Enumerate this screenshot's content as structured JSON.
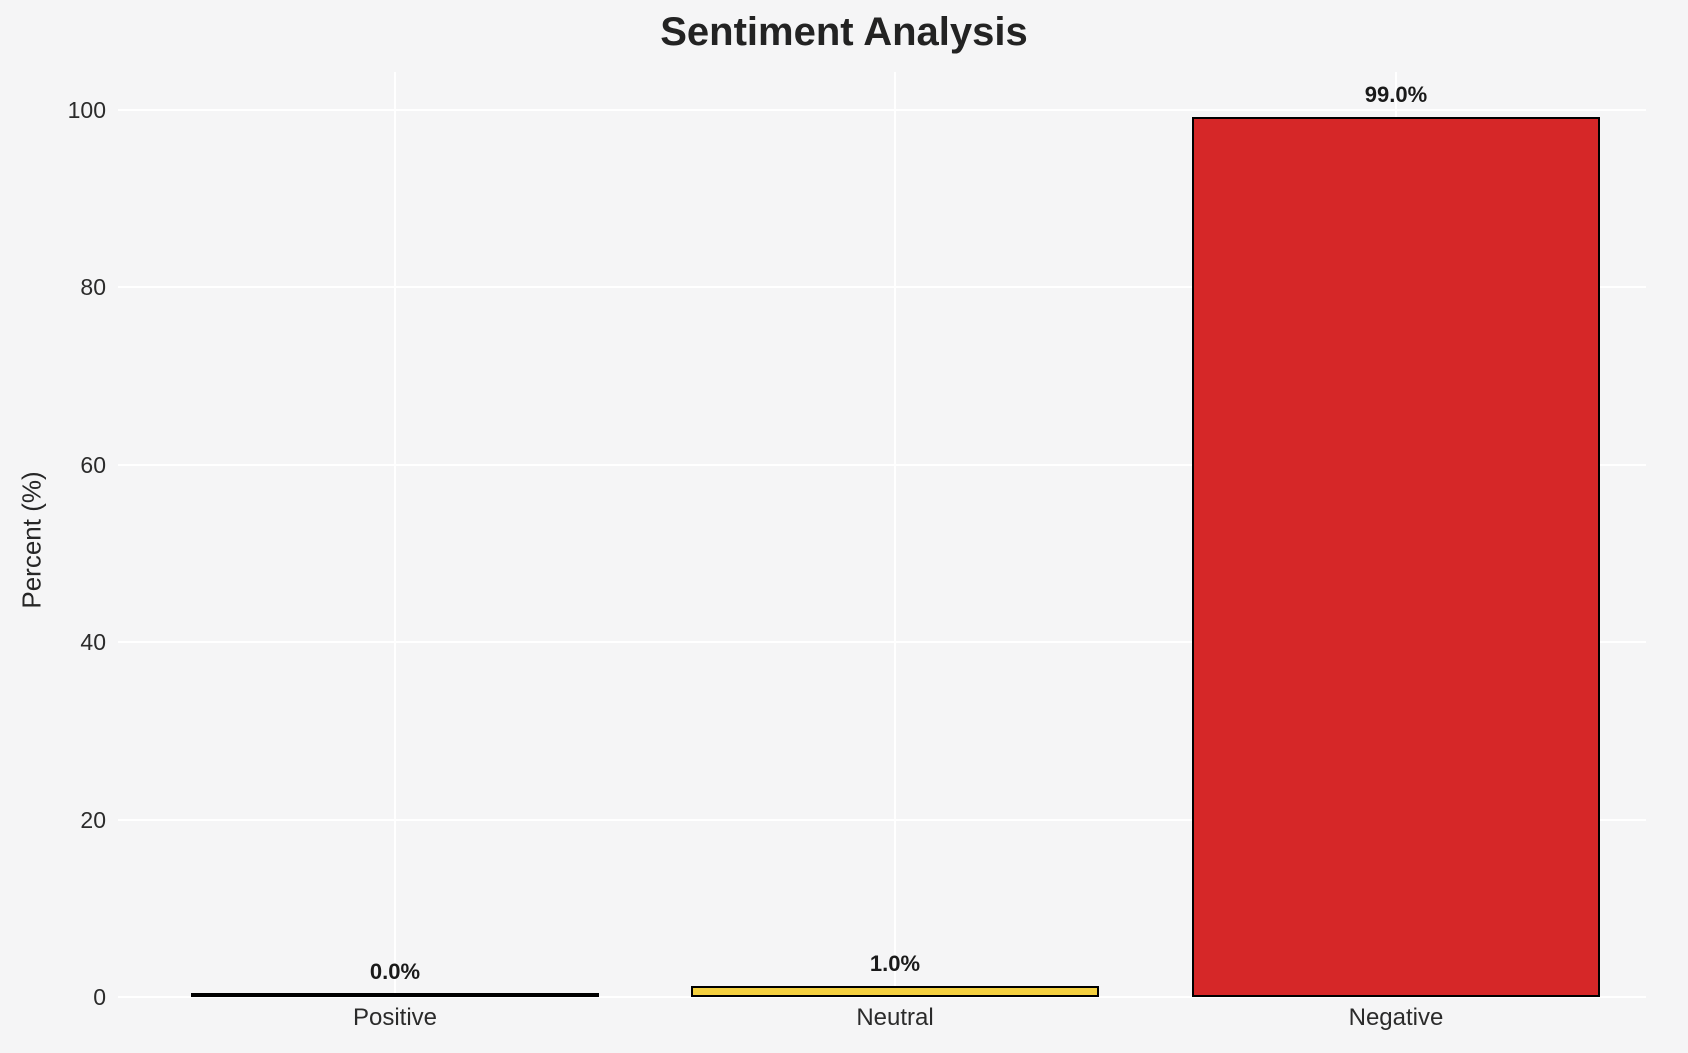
{
  "title": "Sentiment Analysis",
  "chart_data": {
    "type": "bar",
    "title": "Sentiment Analysis",
    "xlabel": "",
    "ylabel": "Percent (%)",
    "categories": [
      "Positive",
      "Neutral",
      "Negative"
    ],
    "values": [
      0.0,
      1.0,
      99.0
    ],
    "value_labels": [
      "0.0%",
      "1.0%",
      "99.0%"
    ],
    "yticks": [
      0,
      20,
      40,
      60,
      80,
      100
    ],
    "ylim": [
      0,
      104
    ],
    "grid": "on",
    "grid_style": "white horizontal gridlines at y ticks and vertical gridlines at bar centers on light gray background",
    "legend": "none",
    "bar_colors": [
      "#2ca02c",
      "#f4d03f",
      "#d62728"
    ],
    "bar_edge_color": "#000000",
    "colors": {
      "background": "#f5f5f6",
      "gridline": "#ffffff",
      "title_text": "#232323",
      "tick_text": "#2b2b2b",
      "negative_bar": "#d62728",
      "neutral_bar": "#f4d03f"
    }
  }
}
